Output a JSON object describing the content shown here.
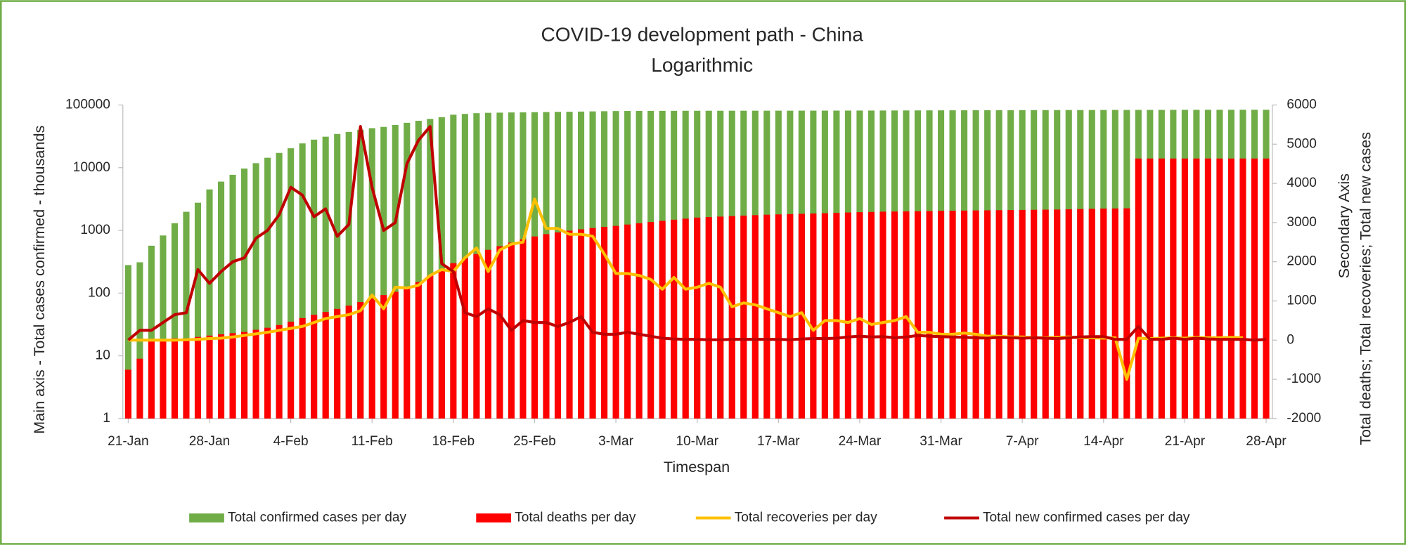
{
  "chart_data": {
    "type": "combo",
    "title": "COVID-19 development path - China",
    "subtitle": "Logarithmic",
    "x_label": "Timespan",
    "y_label": "Main axis - Total cases confirmed - thousands",
    "y2_label": [
      "Secondary Axis",
      "Total deaths; Total recoveries; Total new cases"
    ],
    "y_scale": "log",
    "ylim": [
      1,
      100000
    ],
    "yticks": [
      1,
      10,
      100,
      1000,
      10000,
      100000
    ],
    "y2lim": [
      -2000,
      6000
    ],
    "y2ticks": [
      -2000,
      -1000,
      0,
      1000,
      2000,
      3000,
      4000,
      5000,
      6000
    ],
    "legend": "bottom",
    "categories": [
      "21-Jan",
      null,
      null,
      null,
      null,
      null,
      null,
      "28-Jan",
      null,
      null,
      null,
      null,
      null,
      null,
      "4-Feb",
      null,
      null,
      null,
      null,
      null,
      null,
      "11-Feb",
      null,
      null,
      null,
      null,
      null,
      null,
      "18-Feb",
      null,
      null,
      null,
      null,
      null,
      null,
      "25-Feb",
      null,
      null,
      null,
      null,
      null,
      null,
      "3-Mar",
      null,
      null,
      null,
      null,
      null,
      null,
      "10-Mar",
      null,
      null,
      null,
      null,
      null,
      null,
      "17-Mar",
      null,
      null,
      null,
      null,
      null,
      null,
      "24-Mar",
      null,
      null,
      null,
      null,
      null,
      null,
      "31-Mar",
      null,
      null,
      null,
      null,
      null,
      null,
      "7-Apr",
      null,
      null,
      null,
      null,
      null,
      null,
      "14-Apr",
      null,
      null,
      null,
      null,
      null,
      null,
      "21-Apr",
      null,
      null,
      null,
      null,
      null,
      null,
      "28-Apr"
    ],
    "series": [
      {
        "name": "Total confirmed cases per day",
        "type": "bar",
        "color": "#70ad47",
        "values": [
          280,
          310,
          570,
          830,
          1300,
          1980,
          2760,
          4500,
          6000,
          7700,
          9700,
          11800,
          14400,
          17200,
          20400,
          24400,
          28000,
          31200,
          34500,
          37200,
          40200,
          42700,
          44700,
          48000,
          52000,
          56000,
          60000,
          64000,
          70000,
          72000,
          74000,
          75000,
          75500,
          76000,
          76300,
          76800,
          77200,
          77700,
          78000,
          78500,
          79000,
          79500,
          80000,
          80200,
          80400,
          80500,
          80600,
          80700,
          80800,
          80800,
          80900,
          80900,
          81000,
          81000,
          81000,
          81100,
          81100,
          81100,
          81200,
          81200,
          81300,
          81300,
          81400,
          81500,
          81500,
          81600,
          81700,
          81800,
          81900,
          82000,
          82100,
          82200,
          82300,
          82400,
          82500,
          82600,
          82700,
          82800,
          82900,
          83000,
          83000,
          83100,
          83100,
          83200,
          83300,
          83400,
          83400,
          83500,
          83500,
          83600,
          83700,
          83800,
          83800,
          83900,
          83900,
          83900,
          84000,
          84000,
          84000
        ]
      },
      {
        "name": "Total deaths per day",
        "type": "bar",
        "color": "#ff0000",
        "values": [
          6,
          9,
          17,
          18,
          19,
          19,
          20,
          21,
          22,
          23,
          24,
          26,
          28,
          31,
          35,
          40,
          45,
          50,
          56,
          63,
          72,
          82,
          93,
          105,
          120,
          150,
          190,
          240,
          300,
          360,
          420,
          490,
          560,
          640,
          720,
          800,
          870,
          930,
          990,
          1040,
          1090,
          1140,
          1180,
          1240,
          1300,
          1360,
          1420,
          1480,
          1540,
          1600,
          1630,
          1660,
          1690,
          1720,
          1750,
          1780,
          1800,
          1820,
          1840,
          1860,
          1880,
          1900,
          1930,
          1950,
          1970,
          1990,
          2000,
          2010,
          2020,
          2030,
          2050,
          2060,
          2070,
          2080,
          2090,
          2100,
          2110,
          2120,
          2130,
          2140,
          2150,
          2170,
          2190,
          2210,
          2230,
          2240,
          2250,
          14000,
          14000,
          14000,
          14000,
          14000,
          14000,
          14000,
          14000,
          14000,
          14000,
          14000,
          14000
        ]
      },
      {
        "name": "Total recoveries per day",
        "type": "line",
        "axis": "y2",
        "color": "#ffc000",
        "values": [
          0,
          0,
          0,
          0,
          0,
          10,
          20,
          40,
          50,
          80,
          120,
          160,
          200,
          250,
          300,
          350,
          450,
          550,
          600,
          650,
          750,
          1150,
          800,
          1350,
          1330,
          1400,
          1650,
          1800,
          1750,
          2100,
          2350,
          1750,
          2300,
          2450,
          2500,
          3600,
          2850,
          2850,
          2700,
          2700,
          2650,
          2200,
          1700,
          1700,
          1650,
          1550,
          1300,
          1600,
          1300,
          1350,
          1450,
          1350,
          850,
          950,
          900,
          800,
          700,
          600,
          700,
          250,
          500,
          500,
          450,
          550,
          400,
          450,
          500,
          600,
          200,
          200,
          150,
          150,
          180,
          150,
          100,
          100,
          80,
          80,
          60,
          60,
          70,
          80,
          60,
          60,
          50,
          60,
          -1000,
          50,
          40,
          50,
          60,
          50,
          70,
          60,
          60,
          70,
          60,
          null,
          null
        ]
      },
      {
        "name": "Total new confirmed cases per day",
        "type": "line",
        "axis": "y2",
        "color": "#c00000",
        "values": [
          0,
          250,
          250,
          450,
          650,
          700,
          1800,
          1450,
          1750,
          2000,
          2100,
          2600,
          2800,
          3200,
          3900,
          3700,
          3150,
          3350,
          2650,
          2950,
          5450,
          3900,
          2800,
          3000,
          4500,
          5100,
          5450,
          1950,
          1750,
          700,
          600,
          800,
          650,
          250,
          500,
          450,
          450,
          350,
          450,
          600,
          200,
          150,
          150,
          200,
          150,
          100,
          50,
          30,
          20,
          20,
          10,
          10,
          20,
          20,
          20,
          20,
          20,
          10,
          30,
          40,
          40,
          50,
          80,
          100,
          80,
          90,
          60,
          80,
          120,
          100,
          90,
          80,
          70,
          60,
          50,
          70,
          60,
          50,
          60,
          50,
          40,
          60,
          80,
          90,
          90,
          20,
          20,
          350,
          20,
          20,
          50,
          20,
          50,
          30,
          20,
          20,
          20,
          0,
          20
        ]
      }
    ]
  }
}
